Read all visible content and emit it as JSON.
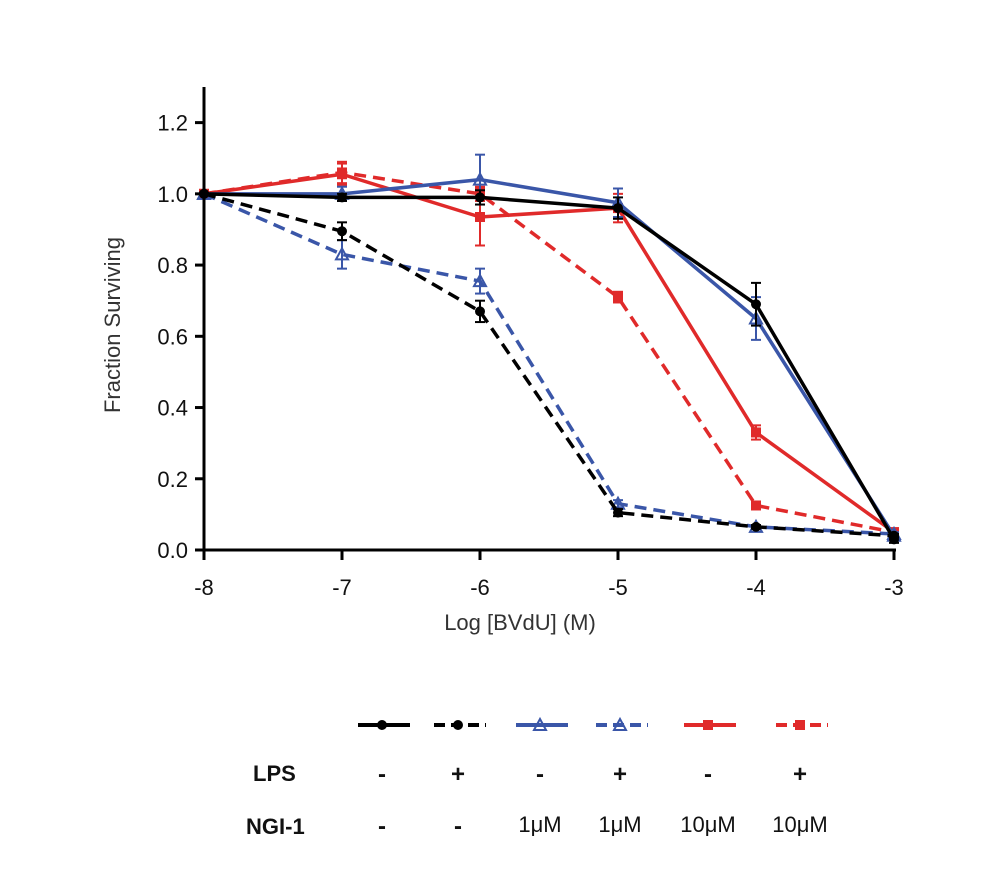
{
  "chart_data": {
    "type": "line",
    "title": "",
    "xlabel": "Log [BVdU] (M)",
    "ylabel": "Fraction Surviving",
    "xlim": [
      -8,
      -3
    ],
    "ylim": [
      0,
      1.3
    ],
    "x_ticks": [
      "-8",
      "-7",
      "-6",
      "-5",
      "-4",
      "-3"
    ],
    "y_ticks": [
      "0.0",
      "0.2",
      "0.4",
      "0.6",
      "0.8",
      "1.0",
      "1.2"
    ],
    "x": [
      -8,
      -7,
      -6,
      -5,
      -4,
      -3
    ],
    "series": [
      {
        "name": "LPS - / NGI-1 -",
        "color": "#000000",
        "dashed": false,
        "marker": "circle",
        "values": [
          1.0,
          0.99,
          0.99,
          0.96,
          0.69,
          0.03
        ],
        "errors": [
          0.0,
          0.01,
          0.02,
          0.03,
          0.06,
          0.01
        ]
      },
      {
        "name": "LPS + / NGI-1 -",
        "color": "#000000",
        "dashed": true,
        "marker": "circle",
        "values": [
          1.0,
          0.895,
          0.67,
          0.105,
          0.065,
          0.04
        ],
        "errors": [
          0.0,
          0.025,
          0.03,
          0.01,
          0.005,
          0.005
        ]
      },
      {
        "name": "LPS - / NGI-1 1μM",
        "color": "#3a56a8",
        "dashed": false,
        "marker": "triangle",
        "values": [
          1.0,
          1.0,
          1.04,
          0.975,
          0.65,
          0.04
        ],
        "errors": [
          0.0,
          0.02,
          0.07,
          0.04,
          0.06,
          0.005
        ]
      },
      {
        "name": "LPS + / NGI-1 1μM",
        "color": "#3a56a8",
        "dashed": true,
        "marker": "triangle",
        "values": [
          1.0,
          0.83,
          0.755,
          0.13,
          0.065,
          0.045
        ],
        "errors": [
          0.0,
          0.04,
          0.035,
          0.01,
          0.005,
          0.005
        ]
      },
      {
        "name": "LPS - / NGI-1 10μM",
        "color": "#e02a2a",
        "dashed": false,
        "marker": "square",
        "values": [
          1.0,
          1.055,
          0.935,
          0.96,
          0.33,
          0.05
        ],
        "errors": [
          0.0,
          0.03,
          0.08,
          0.04,
          0.02,
          0.005
        ]
      },
      {
        "name": "LPS + / NGI-1 10μM",
        "color": "#e02a2a",
        "dashed": true,
        "marker": "square",
        "values": [
          1.0,
          1.06,
          1.0,
          0.71,
          0.125,
          0.05
        ],
        "errors": [
          0.0,
          0.03,
          0.02,
          0.015,
          0.01,
          0.005
        ]
      }
    ]
  },
  "legend": {
    "lps_label": "LPS",
    "ngi_label": "NGI-1",
    "lps": [
      "-",
      "+",
      "-",
      "+",
      "-",
      "+"
    ],
    "ngi": [
      "-",
      "-",
      "1μM",
      "1μM",
      "10μM",
      "10μM"
    ]
  }
}
